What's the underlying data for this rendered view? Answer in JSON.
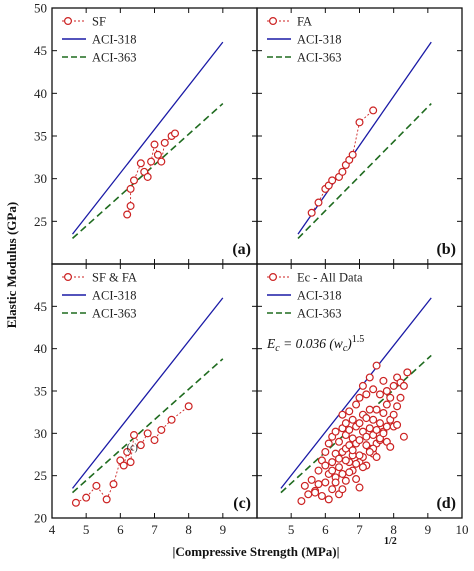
{
  "figure": {
    "xlabel": "|Compressive Strength (MPa)|",
    "xlabel_exponent": "1/2",
    "ylabel": "Elastic Modulus  (GPa)"
  },
  "colors": {
    "data": "#cc2222",
    "aci318": "#1a1aa6",
    "aci363": "#1f6b1f",
    "frame": "#111111"
  },
  "chart_data": [
    {
      "type": "scatter",
      "panel_label": "(a)",
      "xlim": [
        4,
        10
      ],
      "ylim": [
        20,
        50
      ],
      "yticks": [
        25,
        30,
        35,
        40,
        45,
        50
      ],
      "legend_position": "top-left",
      "series": [
        {
          "name": "SF",
          "kind": "markers-line",
          "x": [
            6.2,
            6.3,
            6.3,
            6.4,
            6.6,
            6.7,
            6.8,
            6.9,
            7.0,
            7.1,
            7.2,
            7.3,
            7.5,
            7.6
          ],
          "y": [
            25.8,
            26.8,
            28.8,
            29.8,
            31.8,
            30.8,
            30.2,
            32.0,
            34.0,
            32.8,
            32.0,
            34.2,
            35.0,
            35.3
          ]
        },
        {
          "name": "ACI-318",
          "kind": "line",
          "x": [
            4.6,
            9.0
          ],
          "y": [
            23.5,
            46.0
          ]
        },
        {
          "name": "ACI-363",
          "kind": "dashed-line",
          "x": [
            4.6,
            9.0
          ],
          "y": [
            23.0,
            38.8
          ]
        }
      ]
    },
    {
      "type": "scatter",
      "panel_label": "(b)",
      "xlim": [
        4,
        10
      ],
      "ylim": [
        20,
        50
      ],
      "legend_position": "top-left",
      "series": [
        {
          "name": "FA",
          "kind": "markers-line",
          "x": [
            5.6,
            5.8,
            6.0,
            6.1,
            6.2,
            6.4,
            6.5,
            6.6,
            6.7,
            6.8,
            7.0,
            7.4
          ],
          "y": [
            26.0,
            27.2,
            28.8,
            29.2,
            29.8,
            30.2,
            30.8,
            31.6,
            32.2,
            32.8,
            36.6,
            38.0
          ]
        },
        {
          "name": "ACI-318",
          "kind": "line",
          "x": [
            5.2,
            9.1
          ],
          "y": [
            23.5,
            46.0
          ]
        },
        {
          "name": "ACI-363",
          "kind": "dashed-line",
          "x": [
            5.2,
            9.1
          ],
          "y": [
            23.0,
            38.8
          ]
        }
      ]
    },
    {
      "type": "scatter",
      "panel_label": "(c)",
      "xlim": [
        4,
        10
      ],
      "ylim": [
        20,
        50
      ],
      "xticks": [
        4,
        5,
        6,
        7,
        8,
        9
      ],
      "yticks": [
        20,
        25,
        30,
        35,
        40,
        45
      ],
      "legend_position": "top-left",
      "annotations": [
        {
          "text": "(c)",
          "x": 6.35,
          "y": 28.0
        }
      ],
      "series": [
        {
          "name": "SF & FA",
          "kind": "markers-line",
          "x": [
            4.7,
            5.0,
            5.3,
            5.6,
            5.8,
            6.0,
            6.1,
            6.2,
            6.3,
            6.4,
            6.6,
            6.8,
            7.0,
            7.2,
            7.5,
            8.0
          ],
          "y": [
            21.8,
            22.4,
            23.8,
            22.2,
            24.0,
            26.8,
            26.2,
            27.8,
            26.6,
            29.8,
            28.6,
            30.0,
            29.2,
            30.4,
            31.6,
            33.2
          ]
        },
        {
          "name": "ACI-318",
          "kind": "line",
          "x": [
            4.6,
            9.0
          ],
          "y": [
            23.5,
            46.0
          ]
        },
        {
          "name": "ACI-363",
          "kind": "dashed-line",
          "x": [
            4.6,
            9.0
          ],
          "y": [
            23.0,
            38.8
          ]
        }
      ]
    },
    {
      "type": "scatter",
      "panel_label": "(d)",
      "xlim": [
        4,
        10
      ],
      "ylim": [
        20,
        50
      ],
      "xticks": [
        5,
        6,
        7,
        8,
        9,
        10
      ],
      "legend_position": "top-left",
      "equation": {
        "lhs": "E",
        "lhs_sub": "c",
        "rhs": " = 0.036 (w",
        "rhs_sub": "c",
        "close": ")",
        "exp": "1.5"
      },
      "series": [
        {
          "name": "Ec - All Data",
          "kind": "markers",
          "x": [
            5.3,
            5.5,
            5.6,
            5.7,
            5.8,
            5.9,
            5.9,
            6.0,
            6.0,
            6.1,
            6.1,
            6.2,
            6.2,
            6.2,
            6.3,
            6.3,
            6.3,
            6.4,
            6.4,
            6.4,
            6.5,
            6.5,
            6.5,
            6.5,
            6.6,
            6.6,
            6.6,
            6.6,
            6.7,
            6.7,
            6.7,
            6.7,
            6.8,
            6.8,
            6.8,
            6.8,
            6.9,
            6.9,
            6.9,
            6.9,
            7.0,
            7.0,
            7.0,
            7.0,
            7.0,
            7.1,
            7.1,
            7.1,
            7.1,
            7.2,
            7.2,
            7.2,
            7.2,
            7.3,
            7.3,
            7.3,
            7.3,
            7.4,
            7.4,
            7.4,
            7.4,
            7.5,
            7.5,
            7.5,
            7.5,
            7.6,
            7.6,
            7.6,
            7.7,
            7.7,
            7.7,
            7.8,
            7.8,
            7.8,
            7.9,
            7.9,
            8.0,
            8.0,
            8.1,
            8.1,
            8.2,
            8.2,
            8.3,
            8.4,
            5.4,
            5.8,
            6.2,
            6.0,
            6.4,
            6.8,
            7.2,
            7.6,
            8.0,
            6.6,
            7.0,
            7.4,
            7.8,
            6.1,
            6.5,
            6.9,
            7.3,
            7.7,
            8.1,
            5.7,
            6.3,
            6.7,
            7.1,
            7.5,
            7.9,
            8.3
          ],
          "y": [
            22.0,
            22.8,
            24.5,
            23.2,
            25.6,
            22.6,
            26.8,
            24.2,
            27.8,
            25.2,
            28.8,
            23.4,
            26.6,
            29.6,
            24.8,
            27.6,
            30.2,
            22.8,
            26.0,
            29.0,
            25.2,
            27.8,
            30.6,
            32.2,
            24.4,
            28.2,
            29.8,
            31.2,
            26.6,
            28.6,
            30.4,
            32.6,
            25.6,
            27.4,
            29.4,
            31.6,
            24.6,
            28.8,
            30.8,
            33.4,
            23.6,
            26.6,
            29.2,
            31.2,
            34.2,
            27.2,
            30.2,
            32.2,
            35.6,
            26.2,
            29.6,
            31.8,
            34.6,
            28.2,
            30.6,
            32.8,
            36.6,
            27.6,
            29.8,
            31.6,
            35.2,
            28.8,
            30.4,
            32.8,
            38.0,
            29.2,
            31.2,
            34.6,
            30.2,
            32.4,
            36.2,
            30.8,
            33.4,
            35.0,
            31.6,
            34.2,
            32.2,
            35.6,
            33.2,
            36.6,
            34.2,
            36.0,
            35.6,
            37.2,
            23.8,
            24.0,
            25.6,
            26.2,
            27.0,
            28.0,
            28.6,
            29.4,
            30.8,
            26.8,
            27.4,
            28.2,
            29.0,
            22.2,
            23.4,
            26.4,
            27.8,
            30.0,
            31.0,
            23.0,
            24.2,
            25.4,
            26.0,
            27.2,
            28.4,
            29.6
          ]
        },
        {
          "name": "ACI-318",
          "kind": "line",
          "x": [
            4.7,
            9.1
          ],
          "y": [
            23.5,
            46.0
          ]
        },
        {
          "name": "ACI-363",
          "kind": "dashed-line",
          "x": [
            4.7,
            9.1
          ],
          "y": [
            23.0,
            39.2
          ]
        }
      ]
    }
  ]
}
